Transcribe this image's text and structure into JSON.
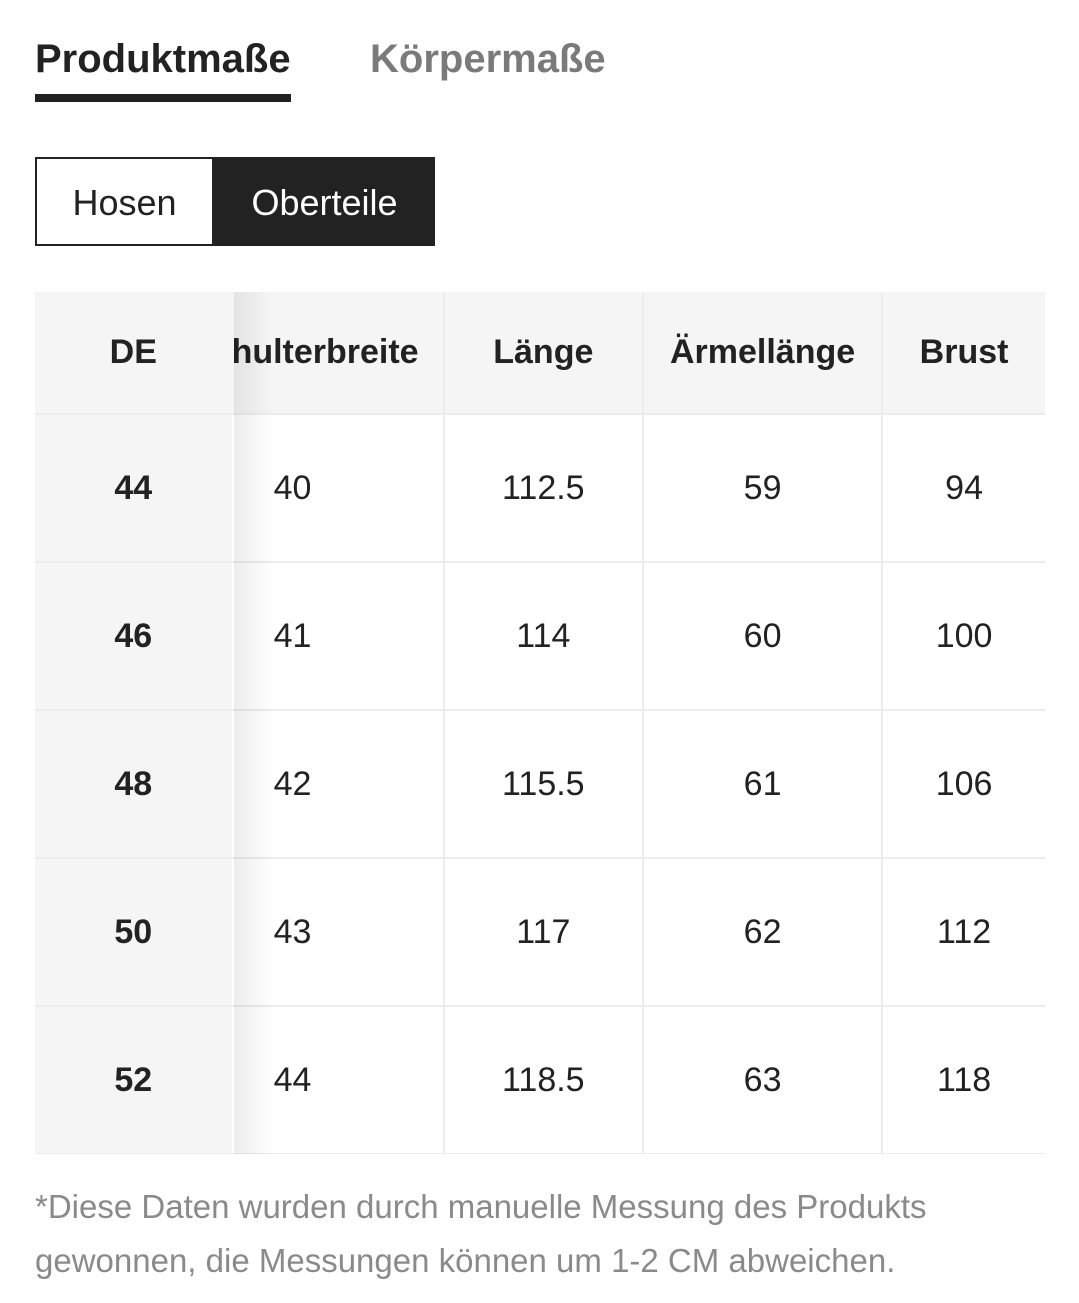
{
  "tabs": {
    "active_label": "Produktmaße",
    "inactive_label": "Körpermaße"
  },
  "segment": {
    "option_1": "Hosen",
    "option_2": "Oberteile",
    "selected": "Oberteile"
  },
  "table": {
    "headers": {
      "partial": "",
      "size": "DE",
      "shoulder": "hulterbreite",
      "length": "Länge",
      "sleeve": "Ärmellänge",
      "chest": "Brust"
    },
    "rows": [
      {
        "size": "44",
        "shoulder": "40",
        "length": "112.5",
        "sleeve": "59",
        "chest": "94"
      },
      {
        "size": "46",
        "shoulder": "41",
        "length": "114",
        "sleeve": "60",
        "chest": "100"
      },
      {
        "size": "48",
        "shoulder": "42",
        "length": "115.5",
        "sleeve": "61",
        "chest": "106"
      },
      {
        "size": "50",
        "shoulder": "43",
        "length": "117",
        "sleeve": "62",
        "chest": "112"
      },
      {
        "size": "52",
        "shoulder": "44",
        "length": "118.5",
        "sleeve": "63",
        "chest": "118"
      }
    ]
  },
  "footnote": "*Diese Daten wurden durch manuelle Messung des Produkts gewonnen, die Messungen können um 1-2 CM abweichen.",
  "colors": {
    "text": "#222222",
    "muted": "#8a8a8a",
    "header_bg": "#f5f5f5",
    "grid": "#ececec"
  }
}
